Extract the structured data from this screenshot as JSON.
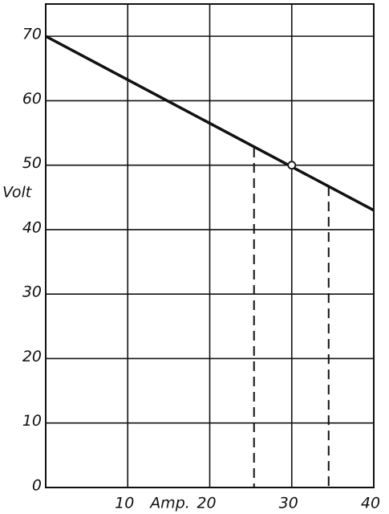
{
  "chart_data": {
    "type": "line",
    "x_label": "Amp.",
    "y_label": "Volt",
    "xlim": [
      0,
      40
    ],
    "ylim": [
      0,
      75
    ],
    "xticks": [
      10,
      20,
      30,
      40
    ],
    "yticks": [
      0,
      10,
      20,
      30,
      40,
      50,
      60,
      70
    ],
    "grid": true,
    "series": [
      {
        "x": [
          0,
          40
        ],
        "values": [
          70,
          43
        ],
        "color": "#111111"
      }
    ],
    "point": {
      "x": 30,
      "y": 50
    },
    "markers": [
      {
        "x": 25.4,
        "y": 52.7
      },
      {
        "x": 34.5,
        "y": 46.7
      }
    ]
  }
}
